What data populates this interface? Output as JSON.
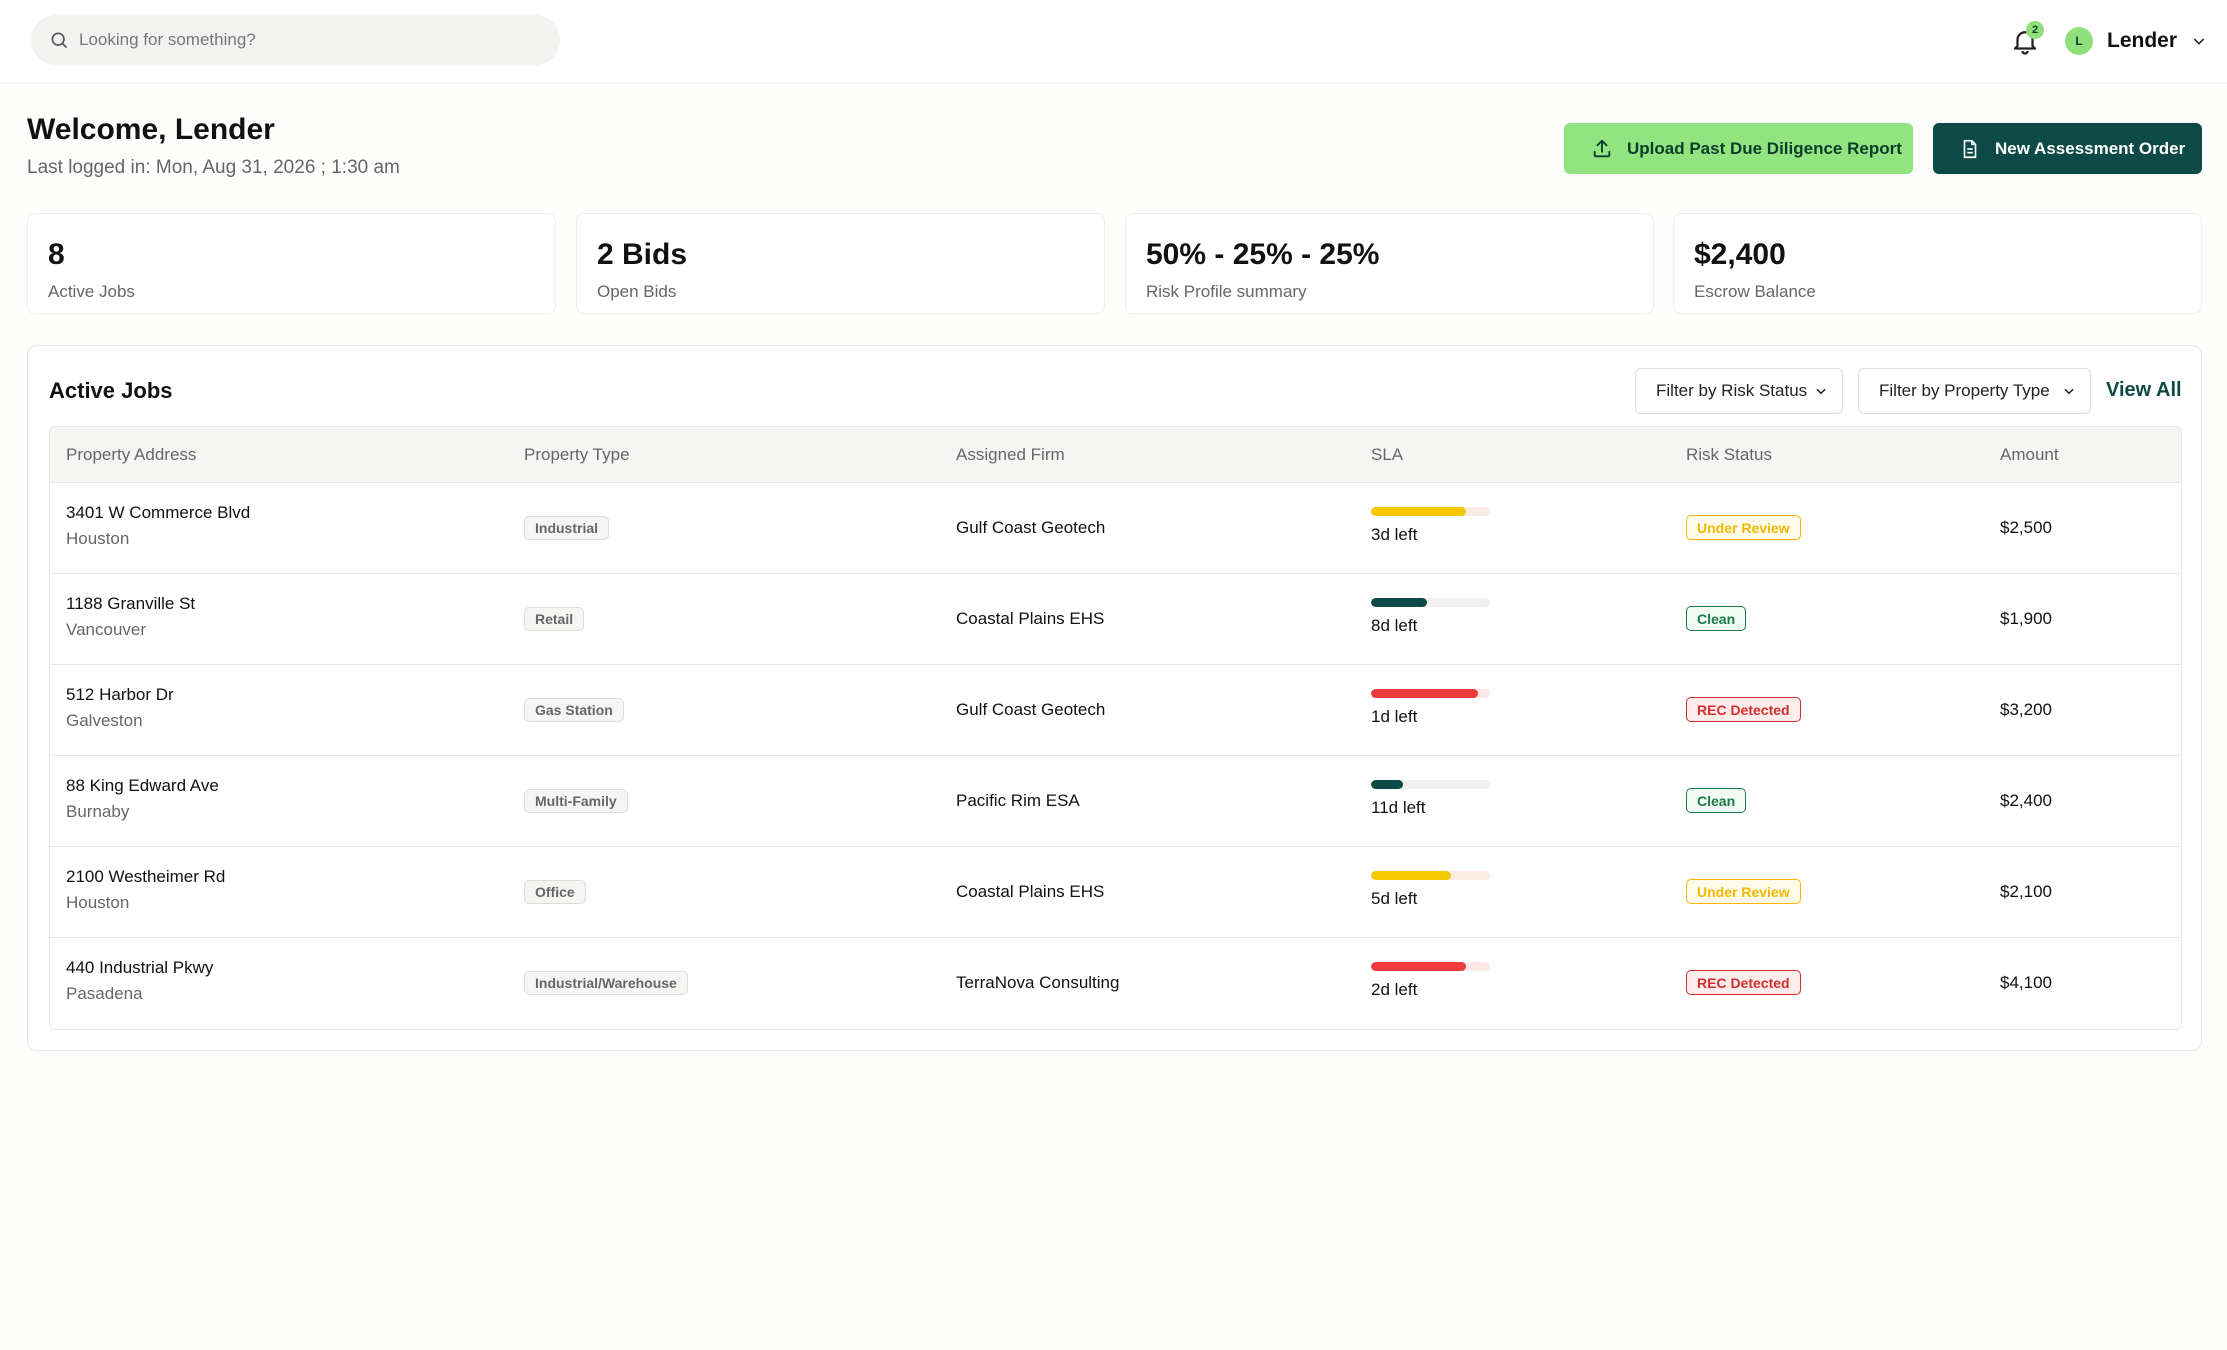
{
  "search": {
    "placeholder": "Looking for something?"
  },
  "header": {
    "notification_count": "2",
    "avatar_initial": "L",
    "user_name": "Lender"
  },
  "welcome": {
    "title": "Welcome, Lender",
    "last_logged": "Last logged in: Mon, Aug 31, 2026 ; 1:30 am"
  },
  "actions": {
    "upload_label": "Upload Past Due Diligence Report",
    "new_label": "New Assessment Order"
  },
  "stats": [
    {
      "value": "8",
      "label": "Active Jobs"
    },
    {
      "value": "2 Bids",
      "label": "Open Bids"
    },
    {
      "value": "50% - 25% - 25%",
      "label": "Risk Profile summary"
    },
    {
      "value": "$2,400",
      "label": "Escrow Balance"
    }
  ],
  "jobs": {
    "title": "Active Jobs",
    "filter_risk": "Filter by Risk Status",
    "filter_property": "Filter by Property Type",
    "view_all": "View All",
    "columns": [
      "Property Address",
      "Property Type",
      "Assigned Firm",
      "SLA",
      "Risk Status",
      "Amount"
    ],
    "rows": [
      {
        "address": "3401 W Commerce Blvd",
        "city": "Houston",
        "type": "Industrial",
        "firm": "Gulf Coast Geotech",
        "sla_fraction": 0.8,
        "sla_color": "#f7c800",
        "sla_text": "3d left",
        "risk": "Under Review",
        "amount": "$2,500"
      },
      {
        "address": "1188 Granville St",
        "city": "Vancouver",
        "type": "Retail",
        "firm": "Coastal Plains EHS",
        "sla_fraction": 0.47,
        "sla_color": "#0d4a45",
        "sla_text": "8d left",
        "risk": "Clean",
        "amount": "$1,900"
      },
      {
        "address": "512 Harbor Dr",
        "city": "Galveston",
        "type": "Gas Station",
        "firm": "Gulf Coast Geotech",
        "sla_fraction": 0.9,
        "sla_color": "#ee3b3b",
        "sla_text": "1d left",
        "risk": "REC Detected",
        "amount": "$3,200"
      },
      {
        "address": "88 King Edward Ave",
        "city": "Burnaby",
        "type": "Multi-Family",
        "firm": "Pacific Rim ESA",
        "sla_fraction": 0.27,
        "sla_color": "#0d4a45",
        "sla_text": "11d left",
        "risk": "Clean",
        "amount": "$2,400"
      },
      {
        "address": "2100 Westheimer Rd",
        "city": "Houston",
        "type": "Office",
        "firm": "Coastal Plains EHS",
        "sla_fraction": 0.67,
        "sla_color": "#f7c800",
        "sla_text": "5d left",
        "risk": "Under Review",
        "amount": "$2,100"
      },
      {
        "address": "440 Industrial Pkwy",
        "city": "Pasadena",
        "type": "Industrial/Warehouse",
        "firm": "TerraNova Consulting",
        "sla_fraction": 0.8,
        "sla_color": "#ee3b3b",
        "sla_text": "2d left",
        "risk": "REC Detected",
        "amount": "$4,100"
      }
    ]
  },
  "risk_styles": {
    "Under Review": {
      "color": "#f2b800",
      "bg": "#fffbea"
    },
    "Clean": {
      "color": "#1e7a4a",
      "bg": "#f1fbf3"
    },
    "REC Detected": {
      "color": "#d32f2f",
      "bg": "#fdecec"
    }
  }
}
